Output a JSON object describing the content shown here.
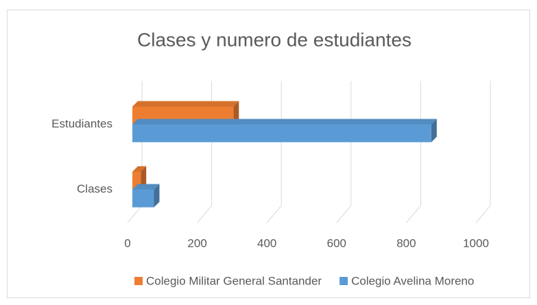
{
  "chart_data": {
    "type": "bar3d_horizontal",
    "title": "Clases y numero de estudiantes",
    "categories": [
      "Clases",
      "Estudiantes"
    ],
    "series": [
      {
        "name": "Colegio Militar General Santander",
        "color": "#ed7d31",
        "values": [
          24,
          290
        ]
      },
      {
        "name": "Colegio Avelina Moreno",
        "color": "#5b9bd5",
        "values": [
          62,
          858
        ]
      }
    ],
    "xlim": [
      0,
      1000
    ],
    "xticks": [
      0,
      200,
      400,
      600,
      800,
      1000
    ],
    "grid": true,
    "legend": "bottom"
  }
}
